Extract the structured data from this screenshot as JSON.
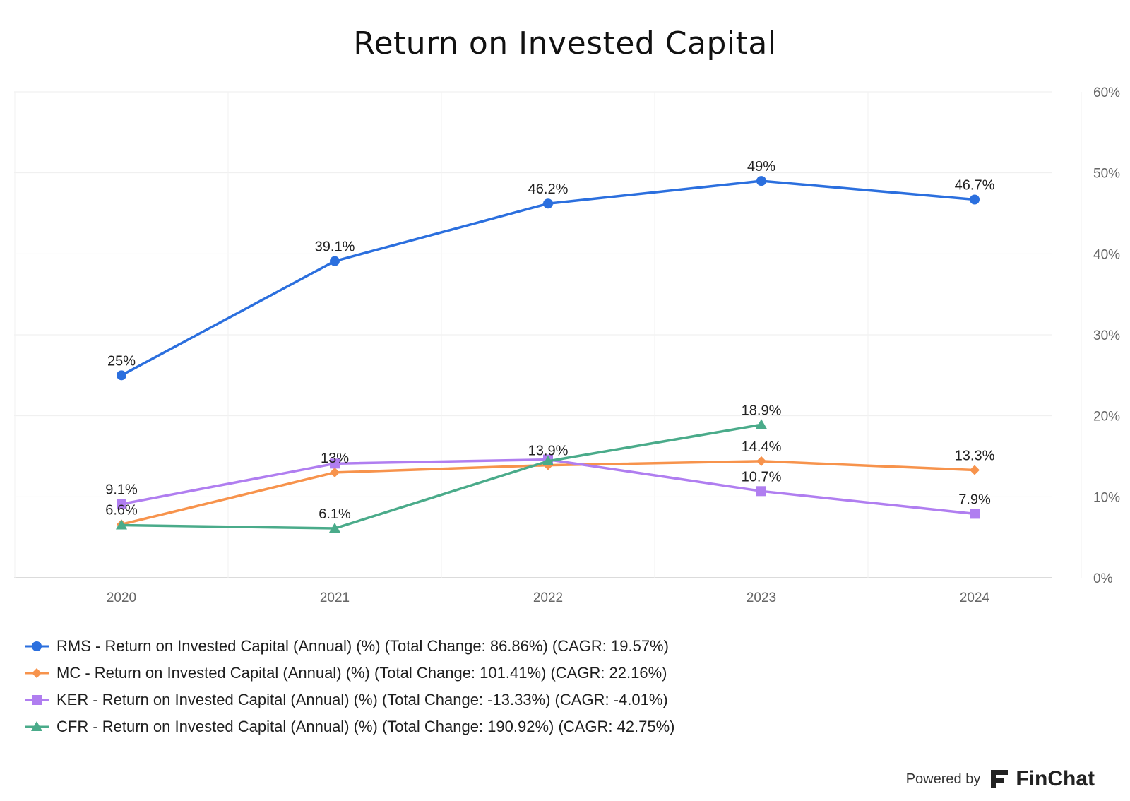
{
  "chart_data": {
    "type": "line",
    "title": "Return on Invested Capital",
    "x": [
      "2020",
      "2021",
      "2022",
      "2023",
      "2024"
    ],
    "ylim": [
      0,
      60
    ],
    "yticks": [
      0,
      10,
      20,
      30,
      40,
      50,
      60
    ],
    "ytick_labels": [
      "0%",
      "10%",
      "20%",
      "30%",
      "40%",
      "50%",
      "60%"
    ],
    "y_axis_side": "right",
    "grid": true,
    "legend_position": "bottom-left",
    "series": [
      {
        "name": "RMS - Return on Invested Capital (Annual) (%) (Total Change: 86.86%) (CAGR: 19.57%)",
        "color": "#2b6fde",
        "marker": "circle",
        "values": [
          25.0,
          39.1,
          46.2,
          49.0,
          46.7
        ],
        "labels": [
          "25%",
          "39.1%",
          "46.2%",
          "49%",
          "46.7%"
        ]
      },
      {
        "name": "MC - Return on Invested Capital (Annual) (%) (Total Change: 101.41%) (CAGR: 22.16%)",
        "color": "#f7934c",
        "marker": "diamond",
        "values": [
          6.6,
          13.0,
          13.9,
          14.4,
          13.3
        ],
        "labels": [
          "6.6%",
          "13%",
          "13.9%",
          "14.4%",
          "13.3%"
        ]
      },
      {
        "name": "KER - Return on Invested Capital (Annual) (%) (Total Change: -13.33%) (CAGR: -4.01%)",
        "color": "#b07ef0",
        "marker": "square",
        "values": [
          9.1,
          14.1,
          14.6,
          10.7,
          7.9
        ],
        "labels": [
          "9.1%",
          "",
          "",
          "10.7%",
          "7.9%"
        ]
      },
      {
        "name": "CFR - Return on Invested Capital (Annual) (%) (Total Change: 190.92%) (CAGR: 42.75%)",
        "color": "#4aab8a",
        "marker": "triangle",
        "values": [
          6.5,
          6.1,
          14.4,
          18.9,
          null
        ],
        "labels": [
          "",
          "6.1%",
          "",
          "18.9%",
          ""
        ]
      }
    ]
  },
  "footer": {
    "powered_by": "Powered by",
    "brand": "FinChat"
  }
}
